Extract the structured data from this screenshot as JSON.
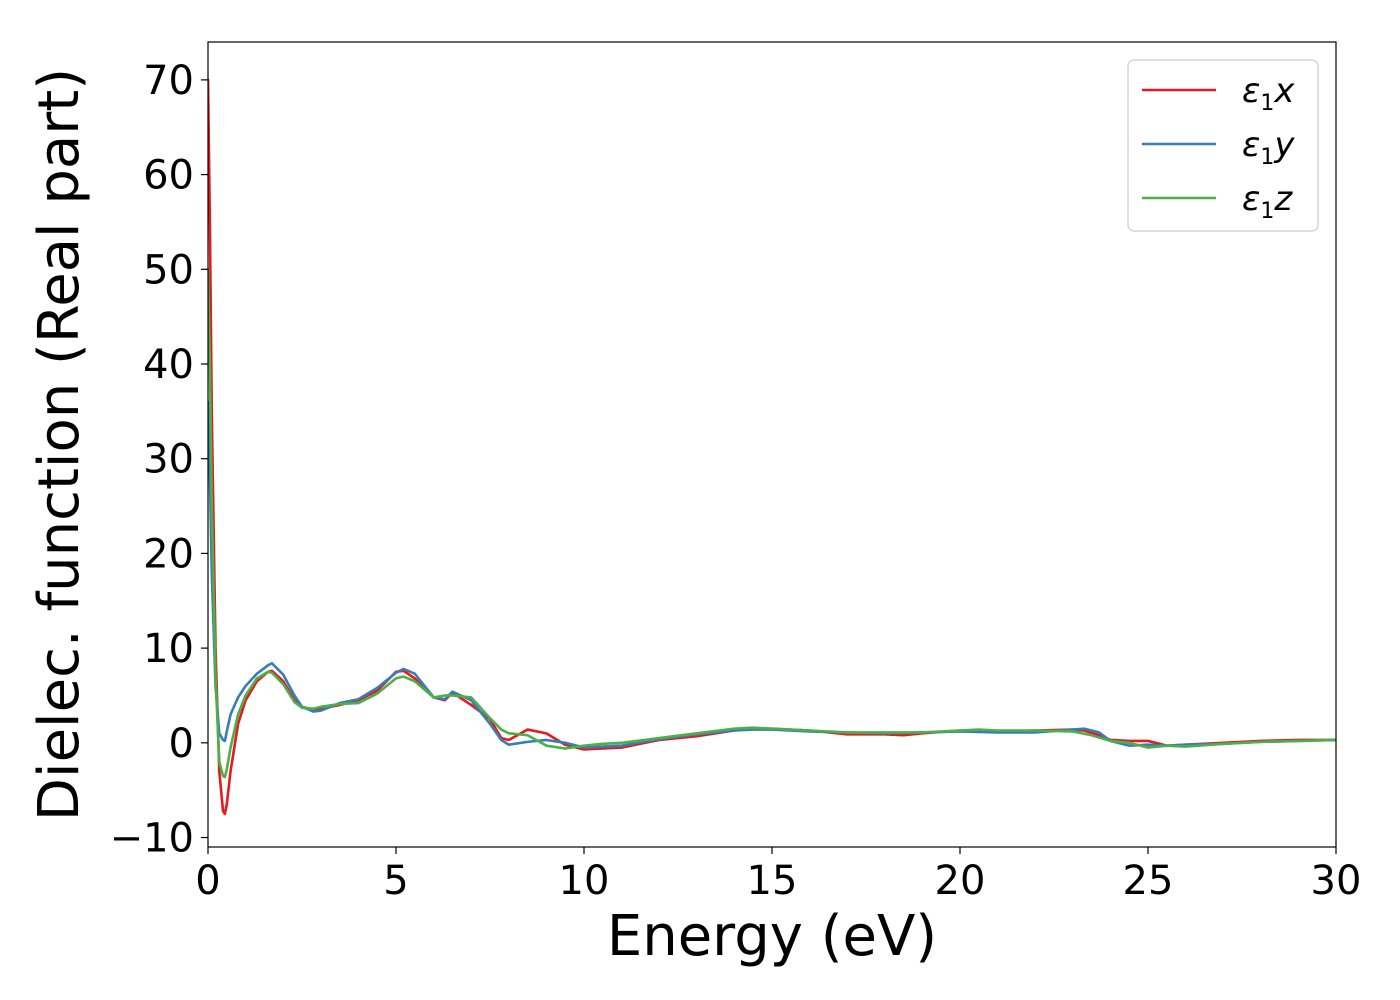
{
  "chart_data": {
    "type": "line",
    "xlabel": "Energy (eV)",
    "ylabel": "Dielec. function (Real part)",
    "xlim": [
      0,
      30
    ],
    "ylim": [
      -11,
      74
    ],
    "xticks": [
      0,
      5,
      10,
      15,
      20,
      25,
      30
    ],
    "yticks": [
      -10,
      0,
      10,
      20,
      30,
      40,
      50,
      60,
      70
    ],
    "yticks_labels": [
      "−10",
      "0",
      "10",
      "20",
      "30",
      "40",
      "50",
      "60",
      "70"
    ],
    "grid": false,
    "legend_position": "top-right",
    "series": [
      {
        "name": "ε1x",
        "legend": {
          "base": "ε",
          "sub": "1",
          "suffix": "x"
        },
        "color": "#e41a1c",
        "x": [
          0,
          0.05,
          0.1,
          0.2,
          0.3,
          0.4,
          0.45,
          0.5,
          0.6,
          0.8,
          1.0,
          1.3,
          1.6,
          1.7,
          2.0,
          2.3,
          2.5,
          2.8,
          3.0,
          3.5,
          4.0,
          4.5,
          5.0,
          5.2,
          5.5,
          6.0,
          6.3,
          6.5,
          7.0,
          7.5,
          7.8,
          8.0,
          8.5,
          9.0,
          9.5,
          10.0,
          10.5,
          11.0,
          12.0,
          13.0,
          14.0,
          14.5,
          15.0,
          16.0,
          17.0,
          18.0,
          18.5,
          19.0,
          20.0,
          21.0,
          22.0,
          23.0,
          23.3,
          23.7,
          24.0,
          24.5,
          25.0,
          25.5,
          26.0,
          27.0,
          28.0,
          29.0,
          30.0
        ],
        "y": [
          70,
          55,
          35,
          10,
          -3,
          -7.2,
          -7.5,
          -6.5,
          -3,
          2,
          4.5,
          6.5,
          7.5,
          7.6,
          6.5,
          4.5,
          3.8,
          3.5,
          3.6,
          4.0,
          4.5,
          5.5,
          7.5,
          7.6,
          6.8,
          4.8,
          4.5,
          5.3,
          4.0,
          2.5,
          0.5,
          0.3,
          1.4,
          1.0,
          -0.2,
          -0.7,
          -0.6,
          -0.5,
          0.3,
          0.7,
          1.3,
          1.5,
          1.5,
          1.3,
          0.9,
          0.9,
          0.8,
          1.0,
          1.3,
          1.2,
          1.3,
          1.4,
          1.3,
          0.8,
          0.3,
          0.2,
          0.2,
          -0.3,
          -0.2,
          0.0,
          0.2,
          0.3,
          0.3
        ]
      },
      {
        "name": "ε1y",
        "legend": {
          "base": "ε",
          "sub": "1",
          "suffix": "y"
        },
        "color": "#377eb8",
        "x": [
          0,
          0.05,
          0.1,
          0.2,
          0.3,
          0.4,
          0.45,
          0.5,
          0.6,
          0.8,
          1.0,
          1.3,
          1.6,
          1.7,
          2.0,
          2.3,
          2.5,
          2.8,
          3.0,
          3.5,
          4.0,
          4.5,
          5.0,
          5.2,
          5.5,
          6.0,
          6.3,
          6.5,
          7.0,
          7.5,
          7.8,
          8.0,
          8.5,
          9.0,
          9.5,
          10.0,
          10.5,
          11.0,
          12.0,
          13.0,
          14.0,
          14.5,
          15.0,
          16.0,
          17.0,
          18.0,
          19.0,
          20.0,
          21.0,
          22.0,
          23.0,
          23.3,
          23.7,
          24.0,
          24.5,
          25.0,
          25.5,
          26.0,
          27.0,
          28.0,
          29.0,
          30.0
        ],
        "y": [
          36,
          28,
          18,
          6,
          1,
          0.3,
          0.2,
          1.2,
          3,
          4.8,
          6.0,
          7.3,
          8.2,
          8.4,
          7.2,
          5.0,
          3.8,
          3.3,
          3.4,
          4.2,
          4.6,
          5.8,
          7.4,
          7.8,
          7.3,
          4.8,
          4.6,
          5.4,
          4.5,
          2.0,
          0.3,
          -0.2,
          0.1,
          0.3,
          0.0,
          -0.5,
          -0.4,
          -0.3,
          0.4,
          0.9,
          1.3,
          1.4,
          1.4,
          1.2,
          1.1,
          1.0,
          1.1,
          1.2,
          1.1,
          1.1,
          1.4,
          1.5,
          1.1,
          0.2,
          -0.3,
          -0.2,
          -0.3,
          -0.2,
          -0.1,
          0.1,
          0.2,
          0.3
        ]
      },
      {
        "name": "ε1z",
        "legend": {
          "base": "ε",
          "sub": "1",
          "suffix": "z"
        },
        "color": "#4daf4a",
        "x": [
          0,
          0.05,
          0.1,
          0.2,
          0.3,
          0.4,
          0.45,
          0.5,
          0.6,
          0.8,
          1.0,
          1.3,
          1.6,
          1.7,
          2.0,
          2.3,
          2.5,
          2.8,
          3.0,
          3.5,
          4.0,
          4.5,
          5.0,
          5.2,
          5.5,
          6.0,
          6.3,
          6.5,
          7.0,
          7.5,
          7.8,
          8.0,
          8.5,
          9.0,
          9.5,
          10.0,
          10.5,
          11.0,
          12.0,
          13.0,
          14.0,
          14.5,
          15.0,
          16.0,
          17.0,
          18.0,
          19.0,
          20.0,
          20.5,
          21.0,
          22.0,
          23.0,
          23.5,
          24.0,
          24.5,
          25.0,
          25.5,
          26.0,
          27.0,
          28.0,
          29.0,
          30.0
        ],
        "y": [
          50,
          40,
          25,
          7,
          -2,
          -3.5,
          -3.6,
          -2.8,
          -0.5,
          3,
          5.0,
          6.8,
          7.5,
          7.4,
          6.2,
          4.3,
          3.7,
          3.6,
          3.8,
          4.1,
          4.2,
          5.2,
          6.8,
          7.0,
          6.5,
          4.8,
          5.0,
          5.0,
          4.8,
          2.6,
          1.4,
          1.0,
          0.8,
          -0.3,
          -0.6,
          -0.3,
          -0.1,
          0.0,
          0.5,
          1.0,
          1.5,
          1.6,
          1.5,
          1.3,
          1.1,
          1.1,
          1.1,
          1.3,
          1.4,
          1.3,
          1.3,
          1.2,
          0.8,
          0.2,
          0.0,
          -0.5,
          -0.3,
          -0.4,
          -0.1,
          0.1,
          0.2,
          0.3
        ]
      }
    ]
  }
}
